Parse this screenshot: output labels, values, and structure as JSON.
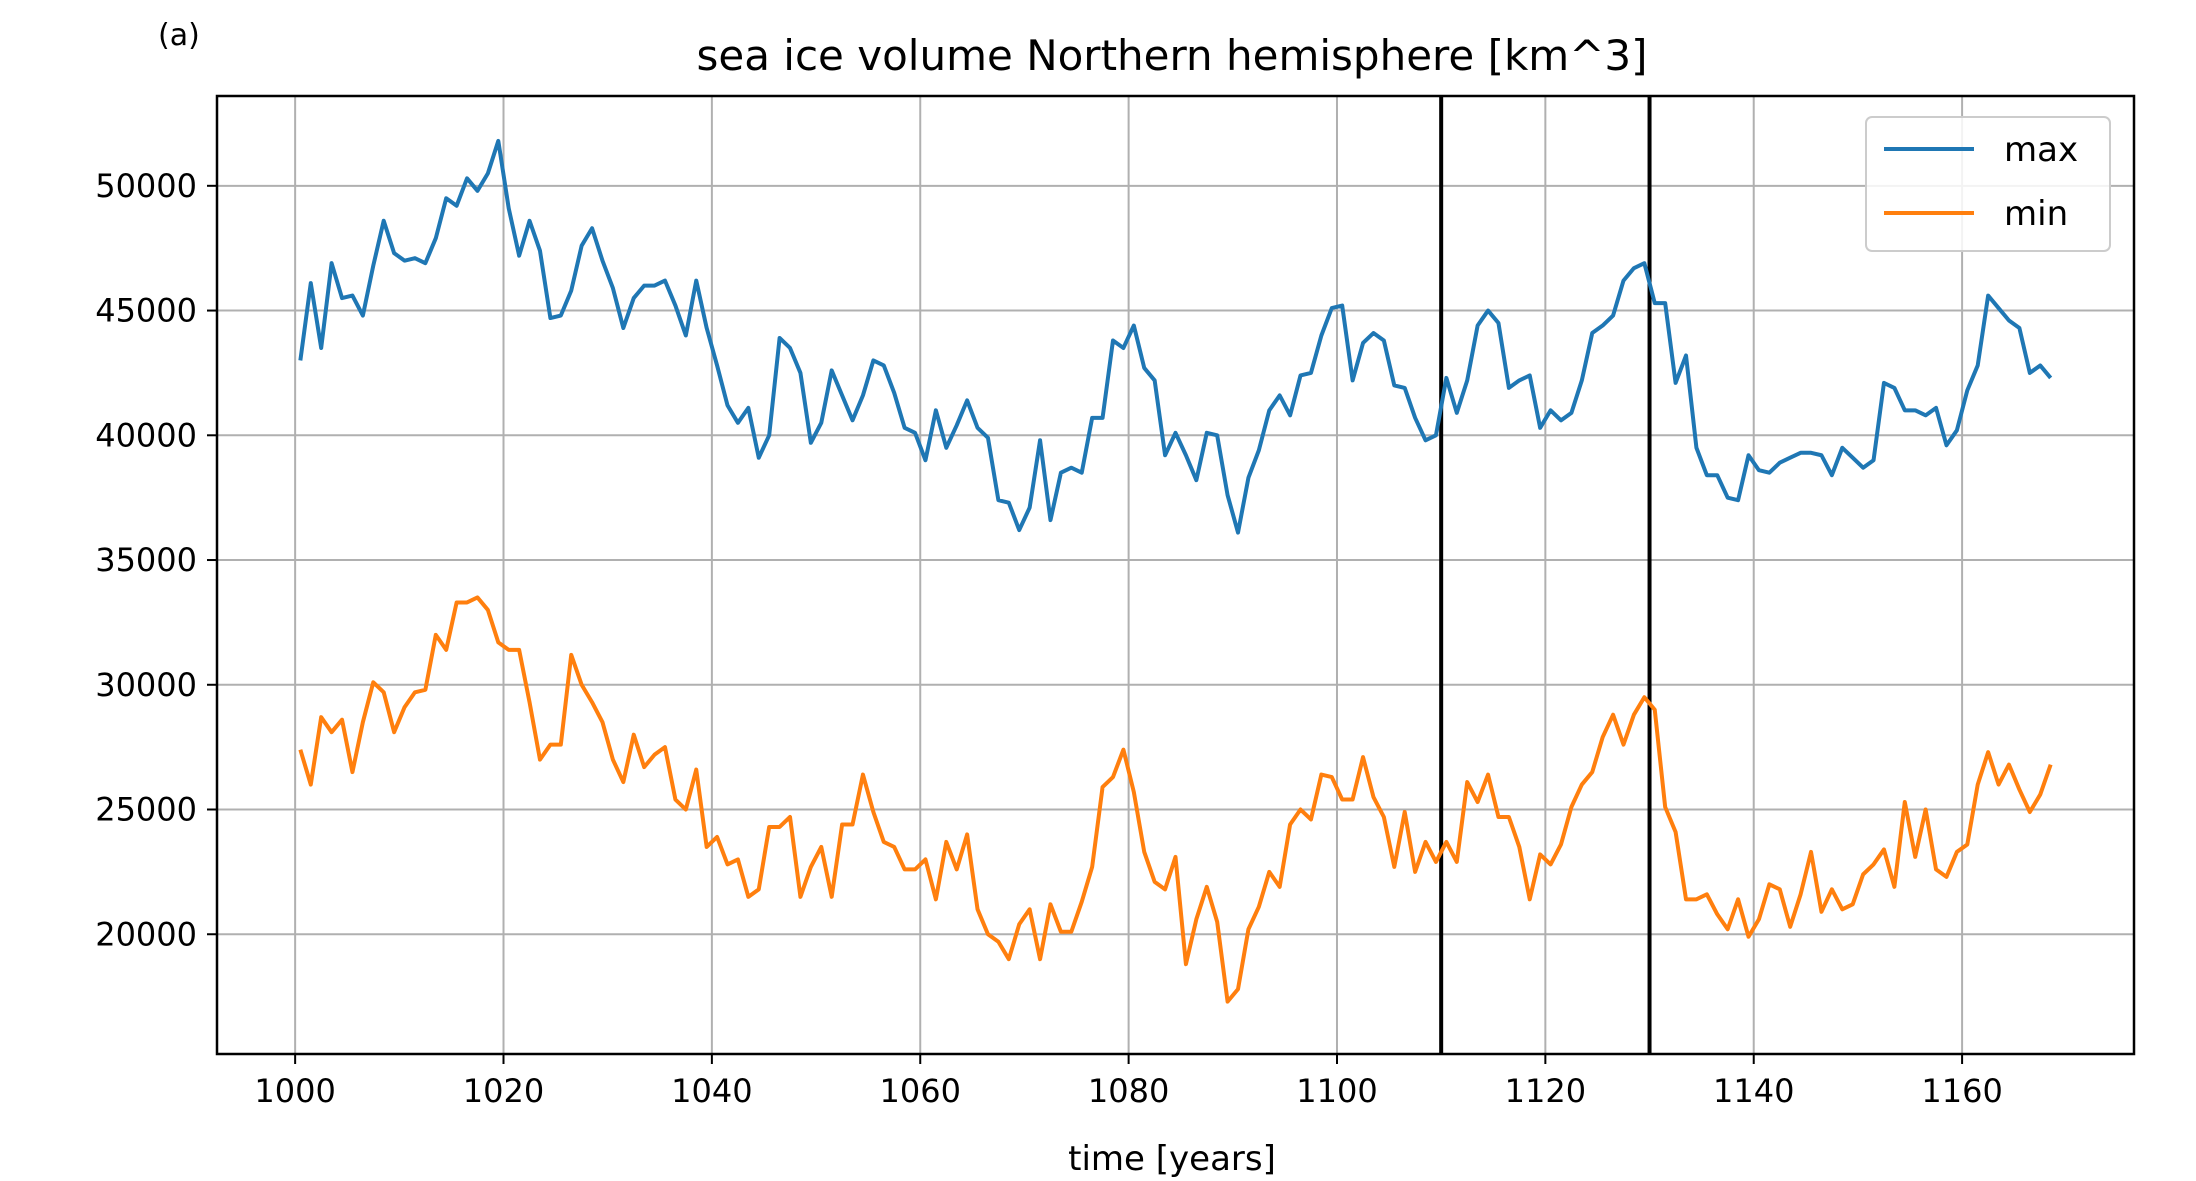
{
  "panel_label": "(a)",
  "chart_data": {
    "type": "line",
    "title": "sea ice volume Northern hemisphere [km^3]",
    "xlabel": "time [years]",
    "ylabel": "",
    "xlim": [
      992.5,
      1176.5
    ],
    "ylim": [
      15200,
      53600
    ],
    "grid": true,
    "legend_position": "upper right",
    "x_ticks": [
      1000,
      1020,
      1040,
      1060,
      1080,
      1100,
      1120,
      1140,
      1160
    ],
    "y_ticks": [
      20000,
      25000,
      30000,
      35000,
      40000,
      45000,
      50000
    ],
    "vertical_lines": [
      1110,
      1130
    ],
    "x_start": 1000.5,
    "x_step": 1,
    "series": [
      {
        "name": "max",
        "color": "#1f77b4",
        "values": [
          43000,
          46100,
          43500,
          46900,
          45500,
          45600,
          44800,
          46800,
          48600,
          47300,
          47000,
          47100,
          46900,
          47900,
          49500,
          49200,
          50300,
          49800,
          50500,
          51800,
          49100,
          47200,
          48600,
          47400,
          44700,
          44800,
          45800,
          47600,
          48300,
          47000,
          45900,
          44300,
          45500,
          46000,
          46000,
          46200,
          45200,
          44000,
          46200,
          44300,
          42800,
          41200,
          40500,
          41100,
          39100,
          40000,
          43900,
          43500,
          42500,
          39700,
          40500,
          42600,
          41600,
          40600,
          41600,
          43000,
          42800,
          41700,
          40300,
          40100,
          39000,
          41000,
          39500,
          40400,
          41400,
          40300,
          39900,
          37400,
          37300,
          36200,
          37100,
          39800,
          36600,
          38500,
          38700,
          38500,
          40700,
          40700,
          43800,
          43500,
          44400,
          42700,
          42200,
          39200,
          40100,
          39200,
          38200,
          40100,
          40000,
          37600,
          36100,
          38300,
          39400,
          41000,
          41600,
          40800,
          42400,
          42500,
          44000,
          45100,
          45200,
          42200,
          43700,
          44100,
          43800,
          42000,
          41900,
          40700,
          39800,
          40000,
          42300,
          40900,
          42200,
          44400,
          45000,
          44500,
          41900,
          42200,
          42400,
          40300,
          41000,
          40600,
          40900,
          42200,
          44100,
          44400,
          44800,
          46200,
          46700,
          46900,
          45300,
          45300,
          42100,
          43200,
          39500,
          38400,
          38400,
          37500,
          37400,
          39200,
          38600,
          38500,
          38900,
          39100,
          39300,
          39300,
          39200,
          38400,
          39500,
          39100,
          38700,
          39000,
          42100,
          41900,
          41000,
          41000,
          40800,
          41100,
          39600,
          40200,
          41800,
          42800,
          45600,
          45100,
          44600,
          44300,
          42500,
          42800,
          42300
        ]
      },
      {
        "name": "min",
        "color": "#ff7f0e",
        "values": [
          27400,
          26000,
          28700,
          28100,
          28600,
          26500,
          28500,
          30100,
          29700,
          28100,
          29100,
          29700,
          29800,
          32000,
          31400,
          33300,
          33300,
          33500,
          33000,
          31700,
          31400,
          31400,
          29300,
          27000,
          27600,
          27600,
          31200,
          30000,
          29300,
          28500,
          27000,
          26100,
          28000,
          26700,
          27200,
          27500,
          25400,
          25000,
          26600,
          23500,
          23900,
          22800,
          23000,
          21500,
          21800,
          24300,
          24300,
          24700,
          21500,
          22700,
          23500,
          21500,
          24400,
          24400,
          26400,
          24900,
          23700,
          23500,
          22600,
          22600,
          23000,
          21400,
          23700,
          22600,
          24000,
          21000,
          20000,
          19700,
          19000,
          20400,
          21000,
          19000,
          21200,
          20100,
          20100,
          21300,
          22700,
          25900,
          26300,
          27400,
          25700,
          23300,
          22100,
          21800,
          23100,
          18800,
          20600,
          21900,
          20500,
          17300,
          17800,
          20200,
          21100,
          22500,
          21900,
          24400,
          25000,
          24600,
          26400,
          26300,
          25400,
          25400,
          27100,
          25500,
          24700,
          22700,
          24900,
          22500,
          23700,
          22900,
          23700,
          22900,
          26100,
          25300,
          26400,
          24700,
          24700,
          23500,
          21400,
          23200,
          22800,
          23600,
          25100,
          26000,
          26500,
          27900,
          28800,
          27600,
          28800,
          29500,
          29000,
          25100,
          24100,
          21400,
          21400,
          21600,
          20800,
          20200,
          21400,
          19900,
          20600,
          22000,
          21800,
          20300,
          21600,
          23300,
          20900,
          21800,
          21000,
          21200,
          22400,
          22800,
          23400,
          21900,
          25300,
          23100,
          25000,
          22600,
          22300,
          23300,
          23600,
          26000,
          27300,
          26000,
          26800,
          25800,
          24900,
          25600,
          26800
        ]
      }
    ]
  }
}
